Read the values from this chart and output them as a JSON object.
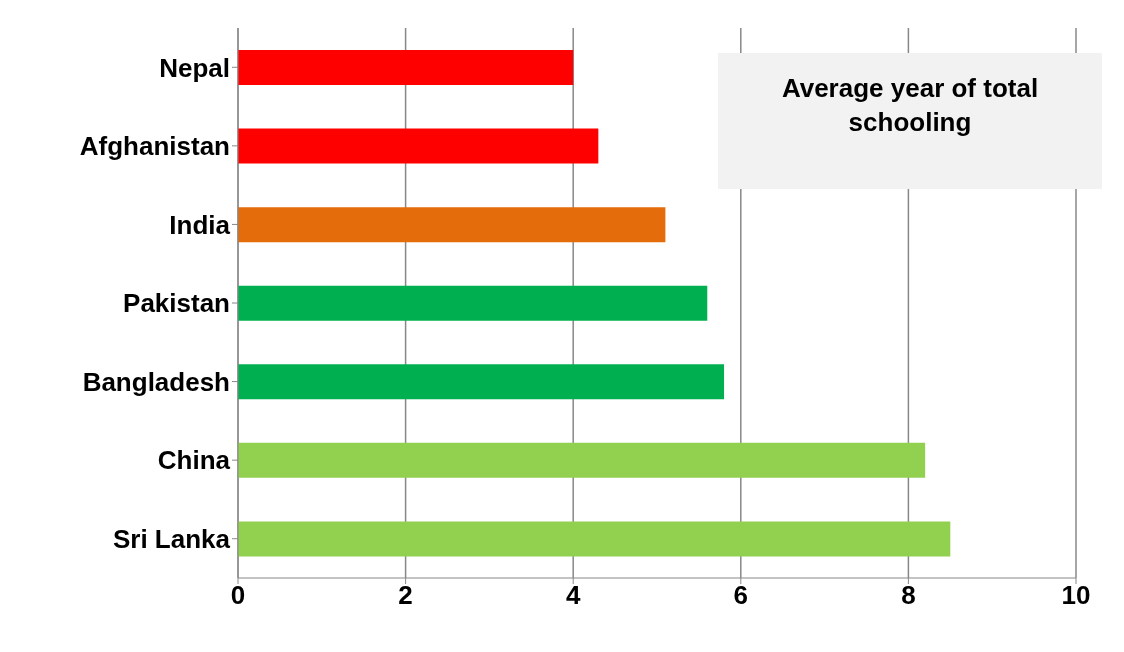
{
  "chart_data": {
    "type": "bar",
    "orientation": "horizontal",
    "title": "Average year of total schooling",
    "categories": [
      "Nepal",
      "Afghanistan",
      "India",
      "Pakistan",
      "Bangladesh",
      "China",
      "Sri Lanka"
    ],
    "values": [
      4.0,
      4.3,
      5.1,
      5.6,
      5.8,
      8.2,
      8.5
    ],
    "colors": [
      "#ff0000",
      "#ff0000",
      "#e46c0a",
      "#00b050",
      "#00b050",
      "#92d050",
      "#92d050"
    ],
    "xlim": [
      0,
      10
    ],
    "xticks": [
      0,
      2,
      4,
      6,
      8,
      10
    ],
    "grid": "x"
  }
}
